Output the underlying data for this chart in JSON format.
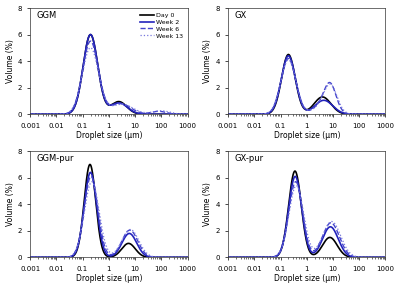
{
  "panels": [
    {
      "title": "GGM",
      "ylim": [
        0,
        8
      ],
      "show_legend": true,
      "curves": {
        "day0": {
          "color": "#000000",
          "lw": 1.2,
          "ls": "-",
          "peaks": [
            {
              "mu": -0.7,
              "sig": 0.28,
              "amp": 6.0
            },
            {
              "mu": 0.38,
              "sig": 0.3,
              "amp": 0.95
            }
          ]
        },
        "week2": {
          "color": "#2222bb",
          "lw": 1.2,
          "ls": "-",
          "peaks": [
            {
              "mu": -0.7,
              "sig": 0.28,
              "amp": 6.0
            },
            {
              "mu": 0.38,
              "sig": 0.33,
              "amp": 0.85
            }
          ]
        },
        "week6": {
          "color": "#4444cc",
          "lw": 1.0,
          "ls": "--",
          "peaks": [
            {
              "mu": -0.7,
              "sig": 0.3,
              "amp": 5.5
            },
            {
              "mu": 0.45,
              "sig": 0.38,
              "amp": 0.8
            },
            {
              "mu": 1.9,
              "sig": 0.28,
              "amp": 0.22
            }
          ]
        },
        "week13": {
          "color": "#7777dd",
          "lw": 0.9,
          "ls": ":",
          "peaks": [
            {
              "mu": -0.7,
              "sig": 0.31,
              "amp": 5.0
            },
            {
              "mu": 0.5,
              "sig": 0.42,
              "amp": 0.75
            },
            {
              "mu": 2.0,
              "sig": 0.32,
              "amp": 0.26
            }
          ]
        }
      }
    },
    {
      "title": "GX",
      "ylim": [
        0,
        8
      ],
      "show_legend": false,
      "curves": {
        "day0": {
          "color": "#000000",
          "lw": 1.2,
          "ls": "-",
          "peaks": [
            {
              "mu": -0.7,
              "sig": 0.26,
              "amp": 4.5
            },
            {
              "mu": 0.6,
              "sig": 0.32,
              "amp": 1.3
            }
          ]
        },
        "week2": {
          "color": "#2222bb",
          "lw": 1.2,
          "ls": "-",
          "peaks": [
            {
              "mu": -0.7,
              "sig": 0.27,
              "amp": 4.4
            },
            {
              "mu": 0.65,
              "sig": 0.34,
              "amp": 1.05
            }
          ]
        },
        "week6": {
          "color": "#4444cc",
          "lw": 1.0,
          "ls": "--",
          "peaks": [
            {
              "mu": -0.7,
              "sig": 0.28,
              "amp": 4.2
            },
            {
              "mu": 0.65,
              "sig": 0.35,
              "amp": 0.8
            },
            {
              "mu": 0.9,
              "sig": 0.22,
              "amp": 1.75
            }
          ]
        },
        "week13": {
          "color": "#7777dd",
          "lw": 0.9,
          "ls": ":",
          "peaks": [
            {
              "mu": -0.7,
              "sig": 0.29,
              "amp": 4.1
            },
            {
              "mu": 0.68,
              "sig": 0.36,
              "amp": 0.75
            },
            {
              "mu": 0.92,
              "sig": 0.24,
              "amp": 1.65
            }
          ]
        }
      }
    },
    {
      "title": "GGM-pur",
      "ylim": [
        0,
        8
      ],
      "show_legend": false,
      "curves": {
        "day0": {
          "color": "#000000",
          "lw": 1.2,
          "ls": "-",
          "peaks": [
            {
              "mu": -0.72,
              "sig": 0.22,
              "amp": 7.0
            },
            {
              "mu": 0.75,
              "sig": 0.26,
              "amp": 1.05
            }
          ]
        },
        "week2": {
          "color": "#2222bb",
          "lw": 1.2,
          "ls": "-",
          "peaks": [
            {
              "mu": -0.7,
              "sig": 0.24,
              "amp": 6.4
            },
            {
              "mu": 0.78,
              "sig": 0.28,
              "amp": 1.8
            }
          ]
        },
        "week6": {
          "color": "#4444cc",
          "lw": 1.0,
          "ls": "--",
          "peaks": [
            {
              "mu": -0.68,
              "sig": 0.26,
              "amp": 6.1
            },
            {
              "mu": 0.8,
              "sig": 0.3,
              "amp": 2.05
            }
          ]
        },
        "week13": {
          "color": "#7777dd",
          "lw": 0.9,
          "ls": ":",
          "peaks": [
            {
              "mu": -0.65,
              "sig": 0.28,
              "amp": 5.7
            },
            {
              "mu": 0.82,
              "sig": 0.32,
              "amp": 2.1
            }
          ]
        }
      }
    },
    {
      "title": "GX-pur",
      "ylim": [
        0,
        8
      ],
      "show_legend": false,
      "curves": {
        "day0": {
          "color": "#000000",
          "lw": 1.2,
          "ls": "-",
          "peaks": [
            {
              "mu": -0.45,
              "sig": 0.24,
              "amp": 6.5
            },
            {
              "mu": 0.88,
              "sig": 0.28,
              "amp": 1.5
            }
          ]
        },
        "week2": {
          "color": "#2222bb",
          "lw": 1.2,
          "ls": "-",
          "peaks": [
            {
              "mu": -0.44,
              "sig": 0.25,
              "amp": 6.1
            },
            {
              "mu": 0.9,
              "sig": 0.3,
              "amp": 2.3
            }
          ]
        },
        "week6": {
          "color": "#4444cc",
          "lw": 1.0,
          "ls": "--",
          "peaks": [
            {
              "mu": -0.42,
              "sig": 0.26,
              "amp": 5.7
            },
            {
              "mu": 0.92,
              "sig": 0.32,
              "amp": 2.6
            }
          ]
        },
        "week13": {
          "color": "#7777dd",
          "lw": 0.9,
          "ls": ":",
          "peaks": [
            {
              "mu": -0.4,
              "sig": 0.28,
              "amp": 5.4
            },
            {
              "mu": 0.95,
              "sig": 0.34,
              "amp": 2.7
            }
          ]
        }
      }
    }
  ],
  "legend_labels": [
    "Day 0",
    "Week 2",
    "Week 6",
    "Week 13"
  ],
  "legend_colors": [
    "#000000",
    "#2222bb",
    "#4444cc",
    "#7777dd"
  ],
  "legend_ls": [
    "-",
    "-",
    "--",
    ":"
  ],
  "legend_lw": [
    1.2,
    1.2,
    1.0,
    0.9
  ],
  "xlabel": "Droplet size (μm)",
  "ylabel": "Volume (%)",
  "xmin": 0.001,
  "xmax": 1000,
  "bg_color": "#ffffff",
  "tick_labels": [
    "0.001",
    "0.01",
    "0.1",
    "1",
    "10",
    "100",
    "1000"
  ]
}
